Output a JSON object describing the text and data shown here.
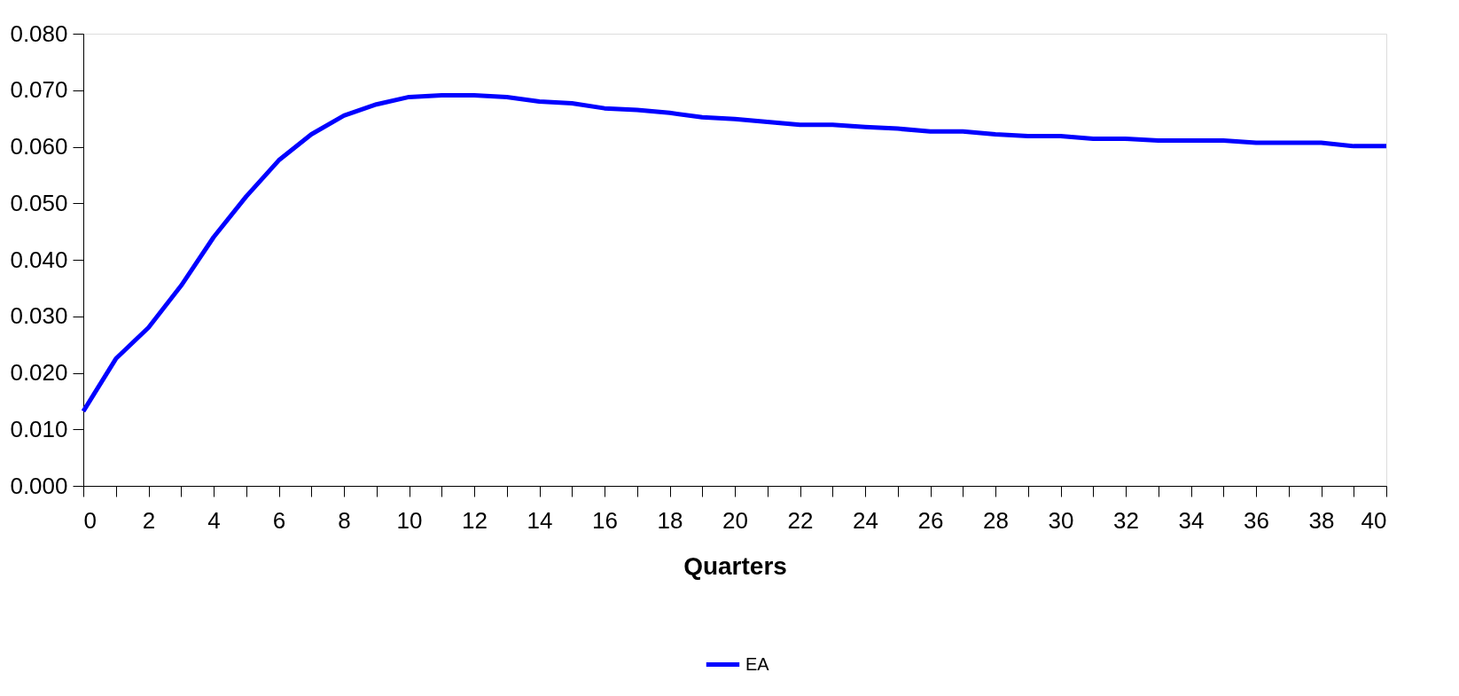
{
  "chart_data": {
    "type": "line",
    "xlabel": "Quarters",
    "x": [
      0,
      1,
      2,
      3,
      4,
      5,
      6,
      7,
      8,
      9,
      10,
      11,
      12,
      13,
      14,
      15,
      16,
      17,
      18,
      19,
      20,
      21,
      22,
      23,
      24,
      25,
      26,
      27,
      28,
      29,
      30,
      31,
      32,
      33,
      34,
      35,
      36,
      37,
      38,
      39,
      40
    ],
    "series": [
      {
        "name": "EA",
        "color": "#0000ff",
        "values": [
          0.0132,
          0.0225,
          0.028,
          0.0354,
          0.044,
          0.0512,
          0.0576,
          0.0622,
          0.0655,
          0.0675,
          0.0688,
          0.0691,
          0.0691,
          0.0688,
          0.068,
          0.0677,
          0.0668,
          0.0665,
          0.066,
          0.0652,
          0.0649,
          0.0644,
          0.0639,
          0.0639,
          0.0635,
          0.0632,
          0.0627,
          0.0627,
          0.0622,
          0.0619,
          0.0619,
          0.0614,
          0.0614,
          0.0611,
          0.0611,
          0.0611,
          0.0607,
          0.0607,
          0.0607,
          0.0601,
          0.0601
        ]
      }
    ],
    "xlim": [
      0,
      40
    ],
    "xticks": [
      0,
      {
        "value": 1,
        "label": null
      },
      2,
      {
        "value": 3,
        "label": null
      },
      4,
      {
        "value": 5,
        "label": null
      },
      6,
      {
        "value": 7,
        "label": null
      },
      8,
      {
        "value": 9,
        "label": null
      },
      10,
      {
        "value": 11,
        "label": null
      },
      12,
      {
        "value": 13,
        "label": null
      },
      14,
      {
        "value": 15,
        "label": null
      },
      16,
      {
        "value": 17,
        "label": null
      },
      18,
      {
        "value": 19,
        "label": null
      },
      20,
      {
        "value": 21,
        "label": null
      },
      22,
      {
        "value": 23,
        "label": null
      },
      24,
      {
        "value": 25,
        "label": null
      },
      26,
      {
        "value": 27,
        "label": null
      },
      28,
      {
        "value": 29,
        "label": null
      },
      30,
      {
        "value": 31,
        "label": null
      },
      32,
      {
        "value": 33,
        "label": null
      },
      34,
      {
        "value": 35,
        "label": null
      },
      36,
      {
        "value": 37,
        "label": null
      },
      38,
      {
        "value": 39,
        "label": null
      },
      40
    ],
    "ylim": [
      0,
      0.08
    ],
    "yticks": [
      {
        "value": 0,
        "label": "0.000"
      },
      {
        "value": 0.01,
        "label": "0.010"
      },
      {
        "value": 0.02,
        "label": "0.020"
      },
      {
        "value": 0.03,
        "label": "0.030"
      },
      {
        "value": 0.04,
        "label": "0.040"
      },
      {
        "value": 0.05,
        "label": "0.050"
      },
      {
        "value": 0.06,
        "label": "0.060"
      },
      {
        "value": 0.07,
        "label": "0.070"
      },
      {
        "value": 0.08,
        "label": "0.080"
      }
    ],
    "grid": false,
    "legend": "bottom",
    "marker": "none",
    "line_style": "solid"
  }
}
